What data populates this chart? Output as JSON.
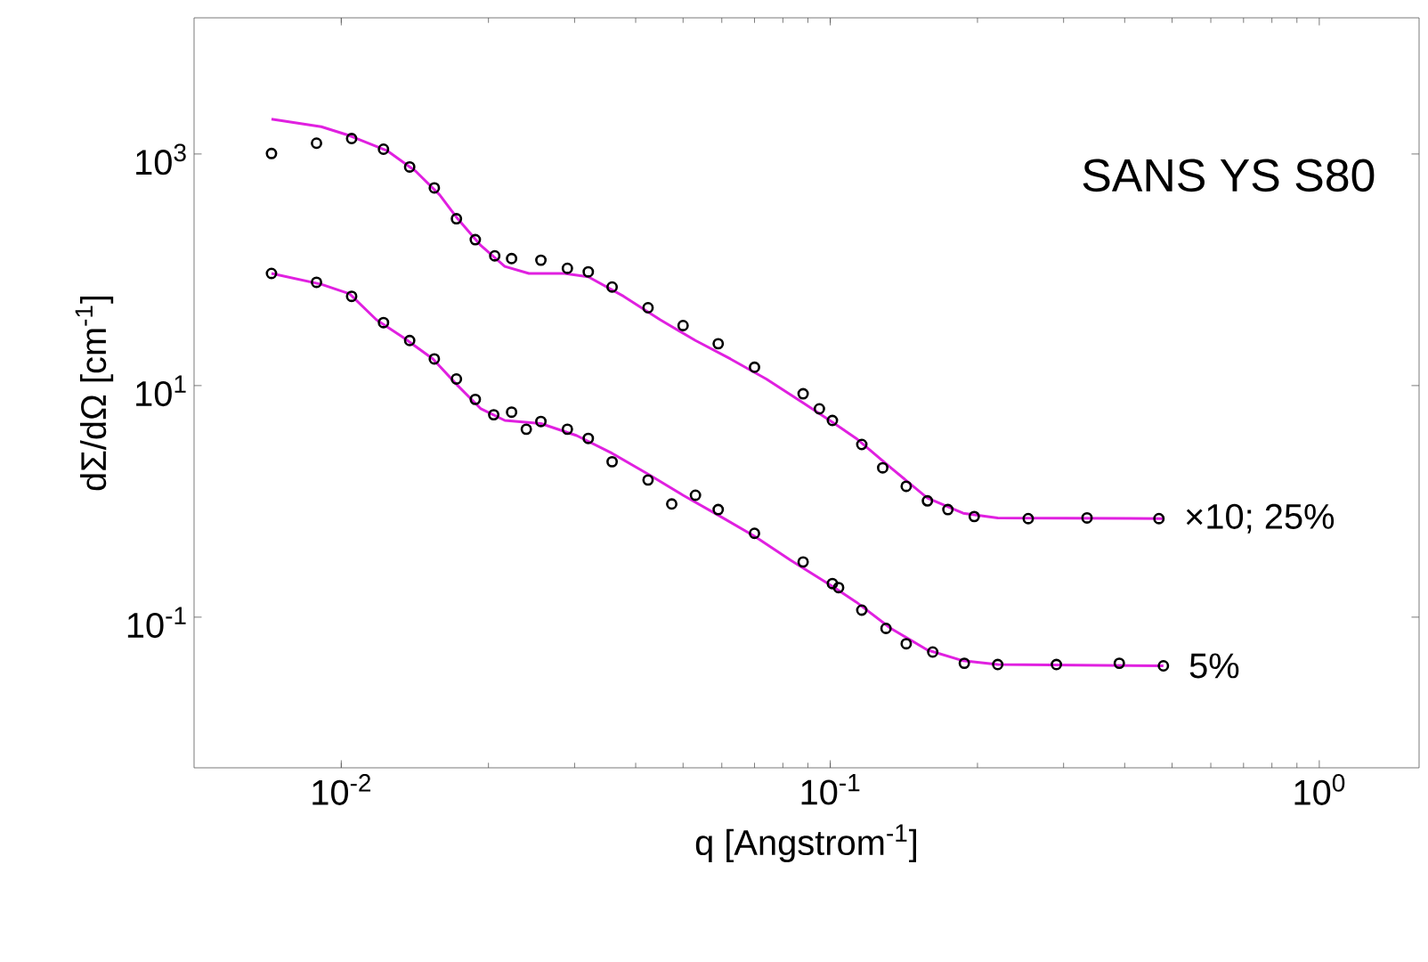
{
  "chart_data": {
    "type": "scatter",
    "title": "SANS YS S80",
    "xlabel": "q [Angstrom$^{-1}$]",
    "ylabel": "dΣ/dΩ [cm$^{-1}$]",
    "log": "xy",
    "xlim": [
      0.005,
      1.6
    ],
    "ylim": [
      0.005,
      15000
    ],
    "xticks": [
      {
        "value": 0.01,
        "label": "10$^{-2}$"
      },
      {
        "value": 0.1,
        "label": "10$^{-1}$"
      },
      {
        "value": 1,
        "label": "10$^{0}$"
      }
    ],
    "yticks": [
      {
        "value": 0.1,
        "label": "10$^{-1}$"
      },
      {
        "value": 10,
        "label": "10$^{1}$"
      },
      {
        "value": 1000,
        "label": "10$^{3}$"
      }
    ],
    "series": [
      {
        "name": "×10; 25%",
        "color": "#000000",
        "marker": "circle",
        "x": [
          0.0072,
          0.0089,
          0.0105,
          0.0122,
          0.0138,
          0.0155,
          0.0172,
          0.0188,
          0.0206,
          0.0223,
          0.0256,
          0.029,
          0.032,
          0.0358,
          0.0424,
          0.05,
          0.059,
          0.07,
          0.088,
          0.095,
          0.101,
          0.116,
          0.128,
          0.143,
          0.158,
          0.174,
          0.197,
          0.254,
          0.335,
          0.47
        ],
        "values": [
          1010,
          1240,
          1360,
          1100,
          773,
          510,
          276,
          182,
          132,
          125,
          121,
          103,
          96,
          71,
          47,
          33,
          23,
          14.4,
          8.5,
          6.3,
          5.0,
          3.1,
          1.95,
          1.35,
          1.01,
          0.85,
          0.74,
          0.71,
          0.72,
          0.71
        ]
      },
      {
        "name": "5%",
        "color": "#000000",
        "marker": "circle",
        "x": [
          0.0072,
          0.0089,
          0.0105,
          0.0122,
          0.0138,
          0.0155,
          0.0172,
          0.0188,
          0.0205,
          0.0223,
          0.0239,
          0.0256,
          0.029,
          0.032,
          0.0358,
          0.0424,
          0.0474,
          0.053,
          0.059,
          0.07,
          0.088,
          0.101,
          0.104,
          0.116,
          0.13,
          0.143,
          0.162,
          0.188,
          0.22,
          0.29,
          0.39,
          0.48
        ],
        "values": [
          93,
          78,
          59,
          35,
          24.5,
          17,
          11.4,
          7.6,
          5.6,
          5.9,
          4.2,
          4.9,
          4.2,
          3.5,
          2.2,
          1.53,
          0.95,
          1.13,
          0.85,
          0.53,
          0.3,
          0.195,
          0.18,
          0.115,
          0.08,
          0.059,
          0.05,
          0.04,
          0.039,
          0.039,
          0.04,
          0.038
        ]
      },
      {
        "type": "line",
        "color": "#e020e0",
        "marker": "none",
        "x": [
          0.0072,
          0.0091,
          0.0104,
          0.0124,
          0.0142,
          0.0159,
          0.0173,
          0.0193,
          0.0216,
          0.0242,
          0.0286,
          0.032,
          0.0378,
          0.0449,
          0.053,
          0.0625,
          0.074,
          0.088,
          0.102,
          0.113,
          0.133,
          0.158,
          0.187,
          0.22,
          0.48
        ],
        "values": [
          2000,
          1720,
          1440,
          1070,
          710,
          443,
          276,
          162,
          107,
          93,
          93,
          87,
          59,
          37,
          24.5,
          17,
          11.4,
          7.1,
          4.7,
          3.5,
          1.95,
          1.07,
          0.79,
          0.72,
          0.71
        ]
      },
      {
        "type": "line",
        "color": "#e020e0",
        "marker": "none",
        "x": [
          0.0072,
          0.0091,
          0.0104,
          0.0118,
          0.0134,
          0.0154,
          0.0173,
          0.0193,
          0.0216,
          0.0256,
          0.0303,
          0.0358,
          0.0424,
          0.05,
          0.059,
          0.07,
          0.083,
          0.102,
          0.113,
          0.133,
          0.158,
          0.187,
          0.22,
          0.48
        ],
        "values": [
          93,
          75,
          62,
          37,
          26,
          17,
          10,
          6.3,
          5.0,
          4.7,
          3.7,
          2.6,
          1.72,
          1.13,
          0.76,
          0.5,
          0.31,
          0.18,
          0.135,
          0.08,
          0.052,
          0.042,
          0.039,
          0.038
        ]
      }
    ]
  }
}
